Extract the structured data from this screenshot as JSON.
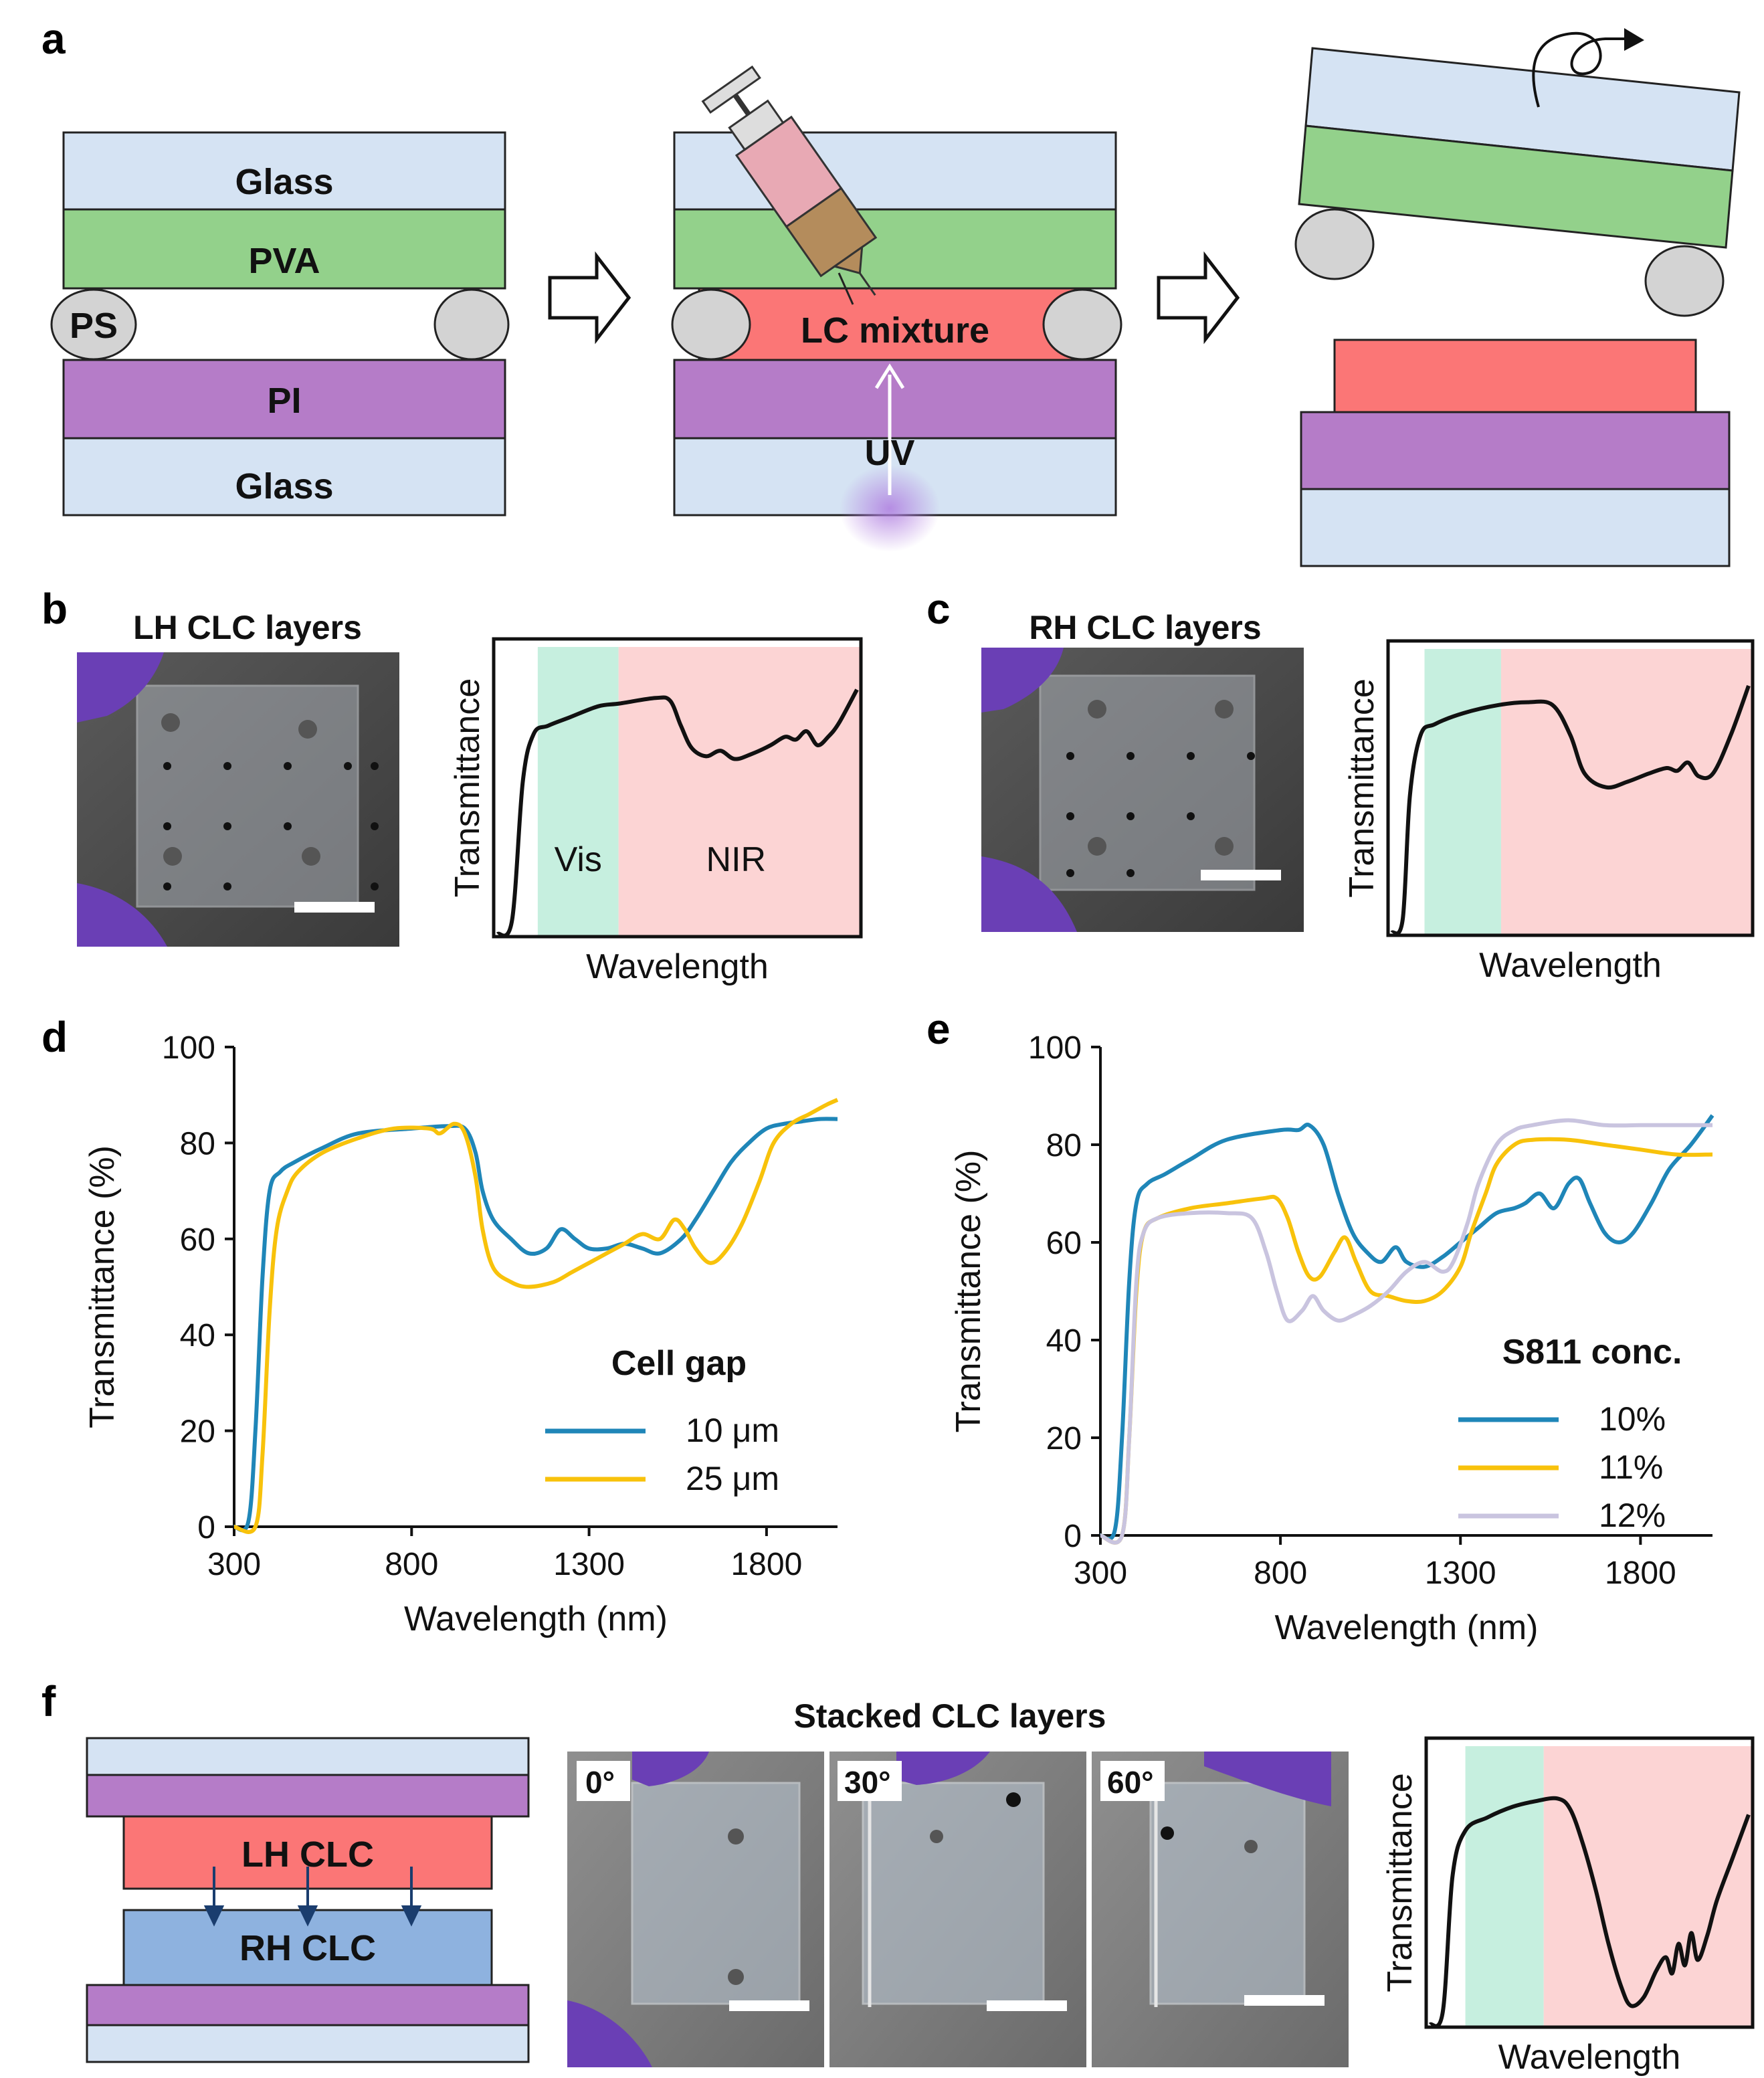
{
  "panel_labels": {
    "a": "a",
    "b": "b",
    "c": "c",
    "d": "d",
    "e": "e",
    "f": "f"
  },
  "panel_a": {
    "glass_top": "Glass",
    "pva": "PVA",
    "ps": "PS",
    "pi": "PI",
    "glass_bottom": "Glass",
    "lc_mixture": "LC mixture",
    "uv": "UV"
  },
  "panel_b": {
    "title": "LH CLC layers",
    "ylabel": "Transmittance",
    "xlabel": "Wavelength",
    "vis": "Vis",
    "nir": "NIR"
  },
  "panel_c": {
    "title": "RH CLC layers",
    "ylabel": "Transmittance",
    "xlabel": "Wavelength"
  },
  "panel_f": {
    "lh_clc": "LH CLC",
    "rh_clc": "RH CLC",
    "title": "Stacked CLC layers",
    "angles": [
      "0°",
      "30°",
      "60°"
    ],
    "ylabel": "Transmittance",
    "xlabel": "Wavelength"
  },
  "colors": {
    "glass": "#d5e3f3",
    "pva": "#93d18b",
    "pi": "#b57cc8",
    "lc": "#fb7676",
    "rh": "#8eb2df",
    "vis": "#c6efdf",
    "nir": "#fcd4d4",
    "blue": "#1f86b8",
    "yellow": "#f8c20b",
    "lilac": "#c9c4df"
  },
  "chart_data": [
    {
      "id": "d",
      "type": "line",
      "xlabel": "Wavelength (nm)",
      "ylabel": "Transmittance (%)",
      "xlim": [
        300,
        2000
      ],
      "ylim": [
        0,
        100
      ],
      "xticks": [
        300,
        800,
        1300,
        1800
      ],
      "yticks": [
        0,
        20,
        40,
        60,
        80,
        100
      ],
      "legend_title": "Cell gap",
      "legend_position": "bottom-right",
      "series": [
        {
          "name": "10 μm",
          "color": "#1f86b8",
          "points": [
            [
              300,
              0
            ],
            [
              340,
              1
            ],
            [
              360,
              20
            ],
            [
              380,
              52
            ],
            [
              400,
              70
            ],
            [
              430,
              74
            ],
            [
              470,
              76
            ],
            [
              550,
              79
            ],
            [
              650,
              82
            ],
            [
              800,
              83
            ],
            [
              900,
              83.5
            ],
            [
              950,
              83
            ],
            [
              980,
              78
            ],
            [
              1000,
              70
            ],
            [
              1030,
              64
            ],
            [
              1080,
              60
            ],
            [
              1130,
              57
            ],
            [
              1180,
              58
            ],
            [
              1220,
              62
            ],
            [
              1260,
              60
            ],
            [
              1300,
              58
            ],
            [
              1350,
              58
            ],
            [
              1400,
              59
            ],
            [
              1450,
              58
            ],
            [
              1500,
              57
            ],
            [
              1560,
              60
            ],
            [
              1600,
              64
            ],
            [
              1650,
              70
            ],
            [
              1700,
              76
            ],
            [
              1750,
              80
            ],
            [
              1800,
              83
            ],
            [
              1850,
              84
            ],
            [
              1900,
              84.5
            ],
            [
              1950,
              85
            ],
            [
              2000,
              85
            ]
          ]
        },
        {
          "name": "25 μm",
          "color": "#f8c20b",
          "points": [
            [
              300,
              0
            ],
            [
              360,
              0
            ],
            [
              380,
              15
            ],
            [
              400,
              45
            ],
            [
              420,
              62
            ],
            [
              450,
              70
            ],
            [
              480,
              74
            ],
            [
              550,
              78
            ],
            [
              650,
              81
            ],
            [
              750,
              83
            ],
            [
              850,
              83
            ],
            [
              880,
              82
            ],
            [
              920,
              84
            ],
            [
              950,
              82
            ],
            [
              980,
              73
            ],
            [
              1000,
              62
            ],
            [
              1030,
              54
            ],
            [
              1080,
              51
            ],
            [
              1130,
              50
            ],
            [
              1200,
              51
            ],
            [
              1250,
              53
            ],
            [
              1300,
              55
            ],
            [
              1350,
              57
            ],
            [
              1400,
              59
            ],
            [
              1450,
              61
            ],
            [
              1500,
              60
            ],
            [
              1540,
              64
            ],
            [
              1570,
              62
            ],
            [
              1600,
              58
            ],
            [
              1640,
              55
            ],
            [
              1680,
              57
            ],
            [
              1730,
              63
            ],
            [
              1780,
              72
            ],
            [
              1820,
              80
            ],
            [
              1870,
              84
            ],
            [
              1920,
              86
            ],
            [
              1970,
              88
            ],
            [
              2000,
              89
            ]
          ]
        }
      ]
    },
    {
      "id": "e",
      "type": "line",
      "xlabel": "Wavelength (nm)",
      "ylabel": "Transmittance (%)",
      "xlim": [
        300,
        2000
      ],
      "ylim": [
        0,
        100
      ],
      "xticks": [
        300,
        800,
        1300,
        1800
      ],
      "yticks": [
        0,
        20,
        40,
        60,
        80,
        100
      ],
      "legend_title": "S811 conc.",
      "legend_position": "bottom-right",
      "series": [
        {
          "name": "10%",
          "color": "#1f86b8",
          "points": [
            [
              300,
              0
            ],
            [
              340,
              1
            ],
            [
              360,
              20
            ],
            [
              380,
              52
            ],
            [
              400,
              68
            ],
            [
              430,
              72
            ],
            [
              480,
              74
            ],
            [
              550,
              77
            ],
            [
              650,
              81
            ],
            [
              800,
              83
            ],
            [
              850,
              83
            ],
            [
              880,
              84
            ],
            [
              920,
              80
            ],
            [
              960,
              70
            ],
            [
              1000,
              62
            ],
            [
              1040,
              58
            ],
            [
              1080,
              56
            ],
            [
              1120,
              59
            ],
            [
              1150,
              56
            ],
            [
              1200,
              55
            ],
            [
              1250,
              57
            ],
            [
              1300,
              60
            ],
            [
              1350,
              63
            ],
            [
              1400,
              66
            ],
            [
              1450,
              67
            ],
            [
              1480,
              68
            ],
            [
              1520,
              70
            ],
            [
              1560,
              67
            ],
            [
              1600,
              72
            ],
            [
              1630,
              73
            ],
            [
              1660,
              68
            ],
            [
              1700,
              62
            ],
            [
              1740,
              60
            ],
            [
              1780,
              62
            ],
            [
              1830,
              68
            ],
            [
              1880,
              75
            ],
            [
              1940,
              80
            ],
            [
              2000,
              86
            ]
          ]
        },
        {
          "name": "11%",
          "color": "#f8c20b",
          "points": [
            [
              300,
              0
            ],
            [
              360,
              0
            ],
            [
              380,
              20
            ],
            [
              400,
              50
            ],
            [
              420,
              62
            ],
            [
              460,
              65
            ],
            [
              550,
              67
            ],
            [
              650,
              68
            ],
            [
              750,
              69
            ],
            [
              790,
              69
            ],
            [
              820,
              65
            ],
            [
              850,
              58
            ],
            [
              880,
              53
            ],
            [
              910,
              53
            ],
            [
              950,
              58
            ],
            [
              980,
              61
            ],
            [
              1010,
              56
            ],
            [
              1050,
              50
            ],
            [
              1100,
              49
            ],
            [
              1150,
              48
            ],
            [
              1200,
              48
            ],
            [
              1250,
              50
            ],
            [
              1300,
              55
            ],
            [
              1330,
              62
            ],
            [
              1370,
              70
            ],
            [
              1400,
              76
            ],
            [
              1450,
              80
            ],
            [
              1500,
              81
            ],
            [
              1600,
              81
            ],
            [
              1700,
              80
            ],
            [
              1800,
              79
            ],
            [
              1900,
              78
            ],
            [
              2000,
              78
            ]
          ]
        },
        {
          "name": "12%",
          "color": "#c9c4df",
          "points": [
            [
              300,
              0
            ],
            [
              360,
              0
            ],
            [
              380,
              20
            ],
            [
              400,
              52
            ],
            [
              420,
              62
            ],
            [
              460,
              65
            ],
            [
              550,
              66
            ],
            [
              650,
              66
            ],
            [
              720,
              65
            ],
            [
              760,
              58
            ],
            [
              790,
              50
            ],
            [
              820,
              44
            ],
            [
              860,
              46
            ],
            [
              890,
              49
            ],
            [
              920,
              46
            ],
            [
              960,
              44
            ],
            [
              1000,
              45
            ],
            [
              1050,
              47
            ],
            [
              1100,
              50
            ],
            [
              1150,
              54
            ],
            [
              1200,
              56
            ],
            [
              1250,
              54
            ],
            [
              1280,
              56
            ],
            [
              1320,
              64
            ],
            [
              1350,
              72
            ],
            [
              1400,
              80
            ],
            [
              1450,
              83
            ],
            [
              1500,
              84
            ],
            [
              1600,
              85
            ],
            [
              1700,
              84
            ],
            [
              1800,
              84
            ],
            [
              1900,
              84
            ],
            [
              2000,
              84
            ]
          ]
        }
      ]
    },
    {
      "id": "b_inset",
      "type": "line",
      "xlabel": "Wavelength",
      "ylabel": "Transmittance",
      "series": [
        {
          "name": "LH",
          "color": "#111111",
          "points": [
            [
              0,
              0
            ],
            [
              0.04,
              0.05
            ],
            [
              0.07,
              0.55
            ],
            [
              0.1,
              0.72
            ],
            [
              0.14,
              0.75
            ],
            [
              0.2,
              0.78
            ],
            [
              0.28,
              0.82
            ],
            [
              0.34,
              0.83
            ],
            [
              0.44,
              0.85
            ],
            [
              0.48,
              0.84
            ],
            [
              0.51,
              0.75
            ],
            [
              0.54,
              0.67
            ],
            [
              0.58,
              0.64
            ],
            [
              0.62,
              0.66
            ],
            [
              0.66,
              0.63
            ],
            [
              0.71,
              0.65
            ],
            [
              0.76,
              0.68
            ],
            [
              0.8,
              0.71
            ],
            [
              0.83,
              0.7
            ],
            [
              0.86,
              0.73
            ],
            [
              0.89,
              0.68
            ],
            [
              0.92,
              0.71
            ],
            [
              0.95,
              0.76
            ],
            [
              1.0,
              0.88
            ]
          ]
        }
      ]
    },
    {
      "id": "c_inset",
      "type": "line",
      "xlabel": "Wavelength",
      "ylabel": "Transmittance",
      "series": [
        {
          "name": "RH",
          "color": "#111111",
          "points": [
            [
              0,
              0
            ],
            [
              0.03,
              0.05
            ],
            [
              0.05,
              0.5
            ],
            [
              0.08,
              0.72
            ],
            [
              0.12,
              0.76
            ],
            [
              0.2,
              0.8
            ],
            [
              0.3,
              0.83
            ],
            [
              0.38,
              0.84
            ],
            [
              0.45,
              0.83
            ],
            [
              0.5,
              0.72
            ],
            [
              0.54,
              0.58
            ],
            [
              0.6,
              0.53
            ],
            [
              0.66,
              0.55
            ],
            [
              0.72,
              0.58
            ],
            [
              0.77,
              0.6
            ],
            [
              0.8,
              0.59
            ],
            [
              0.83,
              0.62
            ],
            [
              0.86,
              0.57
            ],
            [
              0.9,
              0.58
            ],
            [
              0.95,
              0.72
            ],
            [
              1.0,
              0.9
            ]
          ]
        }
      ]
    },
    {
      "id": "f_inset",
      "type": "line",
      "xlabel": "Wavelength",
      "ylabel": "Transmittance",
      "series": [
        {
          "name": "Stacked",
          "color": "#111111",
          "points": [
            [
              0,
              0
            ],
            [
              0.04,
              0.05
            ],
            [
              0.07,
              0.55
            ],
            [
              0.11,
              0.72
            ],
            [
              0.18,
              0.77
            ],
            [
              0.26,
              0.81
            ],
            [
              0.33,
              0.83
            ],
            [
              0.4,
              0.84
            ],
            [
              0.44,
              0.8
            ],
            [
              0.48,
              0.67
            ],
            [
              0.52,
              0.5
            ],
            [
              0.56,
              0.3
            ],
            [
              0.6,
              0.14
            ],
            [
              0.63,
              0.07
            ],
            [
              0.67,
              0.1
            ],
            [
              0.71,
              0.2
            ],
            [
              0.74,
              0.25
            ],
            [
              0.76,
              0.19
            ],
            [
              0.78,
              0.3
            ],
            [
              0.8,
              0.22
            ],
            [
              0.82,
              0.34
            ],
            [
              0.84,
              0.24
            ],
            [
              0.87,
              0.33
            ],
            [
              0.9,
              0.46
            ],
            [
              0.95,
              0.62
            ],
            [
              1.0,
              0.78
            ]
          ]
        }
      ]
    }
  ]
}
